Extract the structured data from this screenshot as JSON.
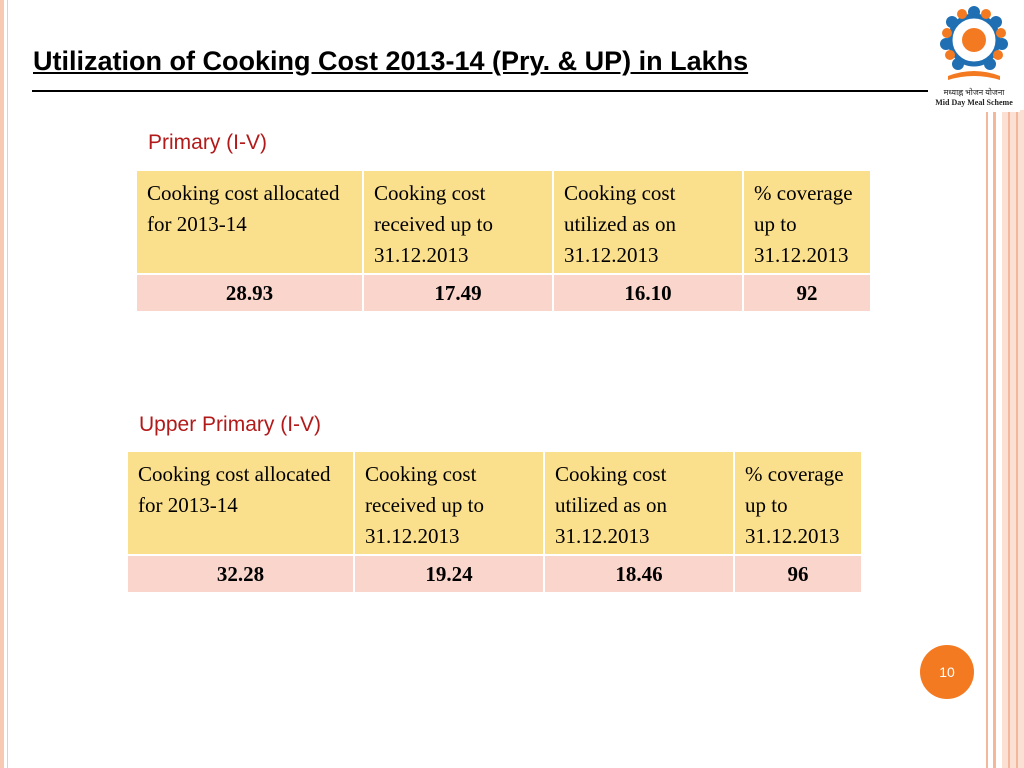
{
  "slide": {
    "title": "Utilization of Cooking Cost 2013-14 (Pry. & UP) in Lakhs",
    "page_number": "10"
  },
  "logo": {
    "hindi_text": "मध्याह्न भोजन योजना",
    "english_text": "Mid Day Meal Scheme",
    "colors": [
      "#1f6fb2",
      "#f47a21"
    ]
  },
  "sections": [
    {
      "label": "Primary (I-V)",
      "headers": [
        "Cooking cost allocated for 2013-14",
        "Cooking cost received up to 31.12.2013",
        "Cooking cost utilized as on 31.12.2013",
        "% coverage up to 31.12.2013"
      ],
      "values": [
        "28.93",
        "17.49",
        "16.10",
        "92"
      ]
    },
    {
      "label": "Upper Primary (I-V)",
      "headers": [
        "Cooking cost allocated for 2013-14",
        "Cooking cost received up to 31.12.2013",
        "Cooking cost utilized as on 31.12.2013",
        "% coverage up to 31.12.2013"
      ],
      "values": [
        "32.28",
        "19.24",
        "18.46",
        "96"
      ]
    }
  ],
  "colors": {
    "header_fill": "#fadf8c",
    "value_fill": "#fad5cb",
    "section_label": "#b21a1a",
    "page_badge": "#f47a21"
  }
}
